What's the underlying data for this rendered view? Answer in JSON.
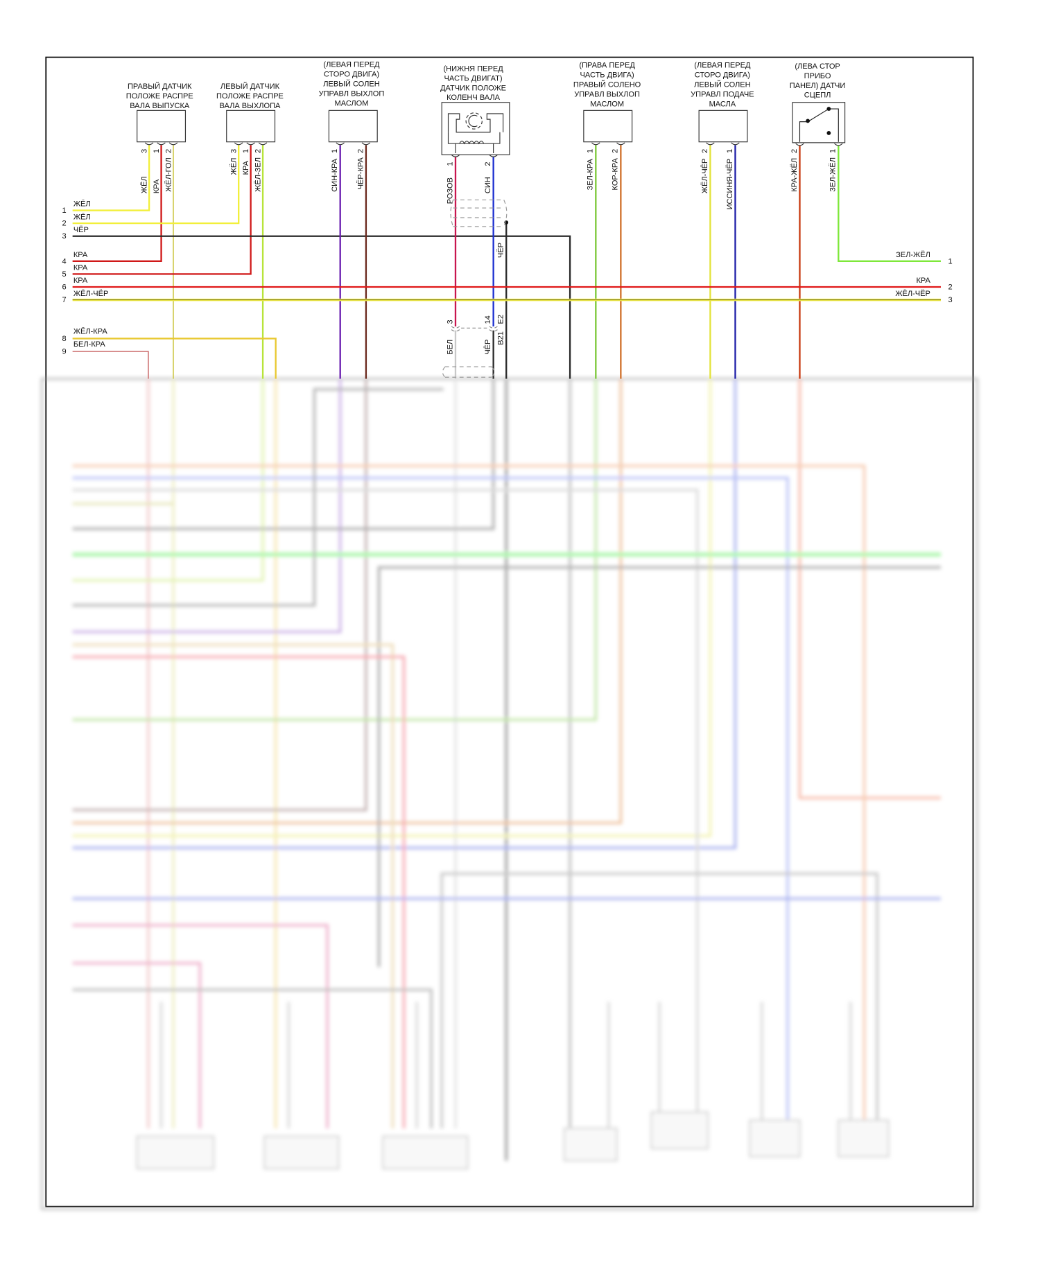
{
  "colors": {
    "yellow": "#f2ef3a",
    "red": "#d01818",
    "yellow_blue": "#e3e36a",
    "yellow_green": "#b8e43a",
    "black": "#2a2a2a",
    "purple": "#6a1fb0",
    "brown": "#6b2a1e",
    "pink": "#c8154e",
    "blue": "#1c2fd0",
    "green": "#7cc83a",
    "orange_brown": "#d0702a",
    "dark_blue": "#2020a8",
    "red_yellow": "#c83a10",
    "green_yellow": "#7ee83a",
    "white_red": "#c86060",
    "white": "#c8c8c8"
  },
  "components": [
    {
      "label": [
        "ПРАВЫЙ ДАТЧИК",
        "ПОЛОЖЕ РАСПРЕ",
        "ВАЛА ВЫПУСКА"
      ],
      "pins": [
        {
          "num": "3",
          "wire": "ЖЁЛ"
        },
        {
          "num": "1",
          "wire": "КРА"
        },
        {
          "num": "2",
          "wire": "ЖЁЛ-ГОЛ"
        }
      ]
    },
    {
      "label": [
        "ЛЕВЫЙ ДАТЧИК",
        "ПОЛОЖЕ РАСПРЕ",
        "ВАЛА ВЫХЛОПА"
      ],
      "pins": [
        {
          "num": "3",
          "wire": "ЖЁЛ"
        },
        {
          "num": "1",
          "wire": "КРА"
        },
        {
          "num": "2",
          "wire": "ЖЁЛ-ЗЕЛ"
        }
      ]
    },
    {
      "label": [
        "(ЛЕВАЯ ПЕРЕД",
        "СТОРО ДВИГА)",
        "ЛЕВЫЙ СОЛЕН",
        "УПРАВЛ ВЫХЛОП",
        "МАСЛОМ"
      ],
      "pins": [
        {
          "num": "1",
          "wire": "СИН-КРА"
        },
        {
          "num": "2",
          "wire": "ЧЁР-КРА"
        }
      ]
    },
    {
      "label": [
        "(НИЖНЯ ПЕРЕД",
        "ЧАСТЬ ДВИГАТ)",
        "ДАТЧИК ПОЛОЖЕ",
        "КОЛЕНЧ ВАЛА"
      ],
      "pins": [
        {
          "num": "1",
          "wire": "РОЗОВ"
        },
        {
          "num": "2",
          "wire": "СИН"
        }
      ],
      "shield_wire": "ЧЁР",
      "connector": {
        "pins": [
          {
            "num": "3",
            "wire": "БЕЛ"
          },
          {
            "num": "14",
            "wire": "ЧЁР"
          }
        ],
        "ids": [
          "E2",
          "B21"
        ]
      }
    },
    {
      "label": [
        "(ПРАВА ПЕРЕД",
        "ЧАСТЬ ДВИГА)",
        "ПРАВЫЙ СОЛЕНО",
        "УПРАВЛ ВЫХЛОП",
        "МАСЛОМ"
      ],
      "pins": [
        {
          "num": "1",
          "wire": "ЗЕЛ-КРА"
        },
        {
          "num": "2",
          "wire": "КОР-КРА"
        }
      ]
    },
    {
      "label": [
        "(ЛЕВАЯ ПЕРЕД",
        "СТОРО ДВИГА)",
        "ЛЕВЫЙ СОЛЕН",
        "УПРАВЛ ПОДАЧЕ",
        "МАСЛА"
      ],
      "pins": [
        {
          "num": "2",
          "wire": "ЖЁЛ-ЧЁР"
        },
        {
          "num": "1",
          "wire": "ИССИНЯ-ЧЁР"
        }
      ]
    },
    {
      "label": [
        "(ЛЕВА СТОР",
        "ПРИБО",
        "ПАНЕЛ) ДАТЧИ",
        "СЦЕПЛ"
      ],
      "pins": [
        {
          "num": "2",
          "wire": "КРА-ЖЁЛ"
        },
        {
          "num": "1",
          "wire": "ЗЕЛ-ЖЁЛ"
        }
      ]
    }
  ],
  "left_connector": [
    {
      "num": "1",
      "wire": "ЖЁЛ"
    },
    {
      "num": "2",
      "wire": "ЖЁЛ"
    },
    {
      "num": "3",
      "wire": "ЧЁР"
    },
    {
      "num": "4",
      "wire": "КРА"
    },
    {
      "num": "5",
      "wire": "КРА"
    },
    {
      "num": "6",
      "wire": "КРА"
    },
    {
      "num": "7",
      "wire": "ЖЁЛ-ЧЁР"
    },
    {
      "num": "8",
      "wire": "ЖЁЛ-КРА"
    },
    {
      "num": "9",
      "wire": "БЕЛ-КРА"
    }
  ],
  "right_connector": [
    {
      "num": "1",
      "wire": "ЗЕЛ-ЖЁЛ"
    },
    {
      "num": "2",
      "wire": "КРА"
    },
    {
      "num": "3",
      "wire": "ЖЁЛ-ЧЁР"
    }
  ]
}
